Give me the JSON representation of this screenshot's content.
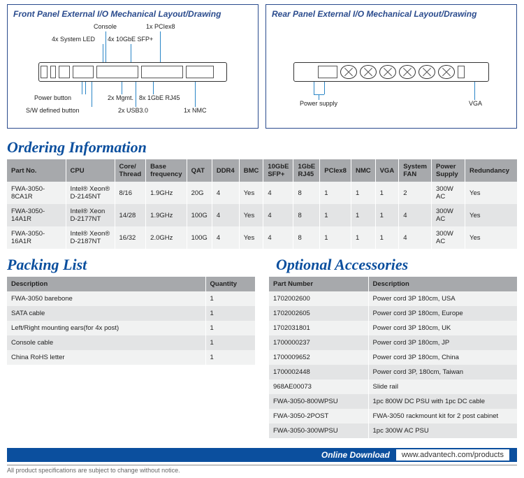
{
  "panels": {
    "front": {
      "title": "Front Panel External I/O Mechanical Layout/Drawing",
      "labels": {
        "console": "Console",
        "pciex8": "1x PCIex8",
        "sysled": "4x System LED",
        "sfp": "4x 10GbE SFP+",
        "powerbtn": "Power button",
        "mgmt": "2x Mgmt.",
        "rj45": "8x 1GbE RJ45",
        "swdef": "S/W defined button",
        "usb": "2x USB3.0",
        "nmc": "1x NMC"
      }
    },
    "rear": {
      "title": "Rear Panel External I/O Mechanical Layout/Drawing",
      "labels": {
        "psu": "Power supply",
        "vga": "VGA"
      }
    }
  },
  "ordering": {
    "title": "Ordering Information",
    "columns": [
      "Part No.",
      "CPU",
      "Core/ Thread",
      "Base frequency",
      "QAT",
      "DDR4",
      "BMC",
      "10GbE SFP+",
      "1GbE RJ45",
      "PCIex8",
      "NMC",
      "VGA",
      "System FAN",
      "Power Supply",
      "Redundancy"
    ],
    "rows": [
      [
        "FWA-3050-8CA1R",
        "Intel® Xeon® D-2145NT",
        "8/16",
        "1.9GHz",
        "20G",
        "4",
        "Yes",
        "4",
        "8",
        "1",
        "1",
        "1",
        "2",
        "300W AC",
        "Yes"
      ],
      [
        "FWA-3050-14A1R",
        "Intel® Xeon D-2177NT",
        "14/28",
        "1.9GHz",
        "100G",
        "4",
        "Yes",
        "4",
        "8",
        "1",
        "1",
        "1",
        "4",
        "300W AC",
        "Yes"
      ],
      [
        "FWA-3050-16A1R",
        "Intel® Xeon® D-2187NT",
        "16/32",
        "2.0GHz",
        "100G",
        "4",
        "Yes",
        "4",
        "8",
        "1",
        "1",
        "1",
        "4",
        "300W AC",
        "Yes"
      ]
    ]
  },
  "packing": {
    "title": "Packing List",
    "columns": [
      "Description",
      "Quantity"
    ],
    "rows": [
      [
        "FWA-3050 barebone",
        "1"
      ],
      [
        "SATA cable",
        "1"
      ],
      [
        "Left/Right mounting ears(for 4x post)",
        "1"
      ],
      [
        "Console cable",
        "1"
      ],
      [
        "China RoHS letter",
        "1"
      ]
    ]
  },
  "accessories": {
    "title": "Optional Accessories",
    "columns": [
      "Part Number",
      "Description"
    ],
    "rows": [
      [
        "1702002600",
        "Power cord 3P 180cm, USA"
      ],
      [
        "1702002605",
        "Power cord 3P 180cm, Europe"
      ],
      [
        "1702031801",
        "Power cord 3P 180cm, UK"
      ],
      [
        "1700000237",
        "Power cord 3P 180cm, JP"
      ],
      [
        "1700009652",
        "Power cord 3P 180cm, China"
      ],
      [
        "1700002448",
        "Power cord 3P, 180cm, Taiwan"
      ],
      [
        "968AE00073",
        "Slide rail"
      ],
      [
        "FWA-3050-800WPSU",
        "1pc 800W DC PSU with 1pc DC cable"
      ],
      [
        "FWA-3050-2POST",
        "FWA-3050 rackmount kit for 2 post cabinet"
      ],
      [
        "FWA-3050-300WPSU",
        "1pc 300W AC PSU"
      ]
    ]
  },
  "footer": {
    "download_label": "Online Download",
    "url": "www.advantech.com/products",
    "note": "All product specifications are subject to change without notice."
  },
  "style": {
    "brand_blue": "#0b4f9e",
    "panel_border": "#2a4b8d",
    "lead_blue": "#2a85c7",
    "th_bg": "#a7a9ac",
    "row_odd": "#f1f2f2",
    "row_even": "#e3e4e5"
  }
}
